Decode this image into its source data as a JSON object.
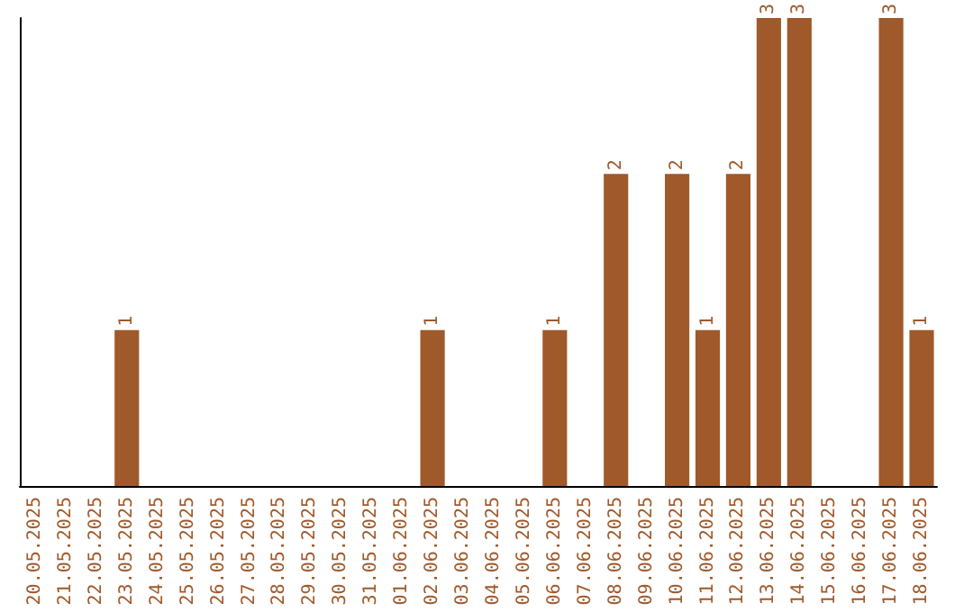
{
  "chart_data": {
    "type": "bar",
    "categories": [
      "20.05.2025",
      "21.05.2025",
      "22.05.2025",
      "23.05.2025",
      "24.05.2025",
      "25.05.2025",
      "26.05.2025",
      "27.05.2025",
      "28.05.2025",
      "29.05.2025",
      "30.05.2025",
      "31.05.2025",
      "01.06.2025",
      "02.06.2025",
      "03.06.2025",
      "04.06.2025",
      "05.06.2025",
      "06.06.2025",
      "07.06.2025",
      "08.06.2025",
      "09.06.2025",
      "10.06.2025",
      "11.06.2025",
      "12.06.2025",
      "13.06.2025",
      "14.06.2025",
      "15.06.2025",
      "16.06.2025",
      "17.06.2025",
      "18.06.2025"
    ],
    "values": [
      0,
      0,
      0,
      1,
      0,
      0,
      0,
      0,
      0,
      0,
      0,
      0,
      0,
      1,
      0,
      0,
      0,
      1,
      0,
      2,
      0,
      2,
      1,
      2,
      3,
      3,
      0,
      0,
      3,
      1
    ],
    "value_labels": [
      null,
      null,
      null,
      "1",
      null,
      null,
      null,
      null,
      null,
      null,
      null,
      null,
      null,
      "1",
      null,
      null,
      null,
      "1",
      null,
      "2",
      null,
      "2",
      "1",
      "2",
      "3",
      "3",
      null,
      null,
      "3",
      "1"
    ],
    "color": "#a0592a",
    "tick_labels": "x",
    "grid": false
  }
}
